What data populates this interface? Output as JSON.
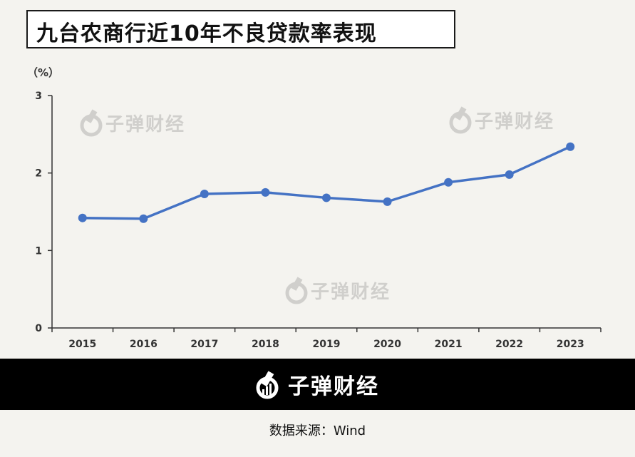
{
  "title": "九台农商行近10年不良贷款率表现",
  "unit_label": "（%）",
  "watermark_text": "子弹财经",
  "footer": {
    "brand": "子弹财经",
    "logo_icon": "bullet-logo-icon"
  },
  "source": "数据来源：Wind",
  "colors": {
    "line": "#4472c4",
    "background": "#f4f3ef",
    "footer_bg": "#000000",
    "axis": "#333333"
  },
  "chart_data": {
    "type": "line",
    "title": "九台农商行近10年不良贷款率表现",
    "xlabel": "",
    "ylabel": "（%）",
    "categories": [
      "2015",
      "2016",
      "2017",
      "2018",
      "2019",
      "2020",
      "2021",
      "2022",
      "2023"
    ],
    "series": [
      {
        "values": [
          1.42,
          1.41,
          1.73,
          1.75,
          1.68,
          1.63,
          1.88,
          1.98,
          2.34
        ]
      }
    ],
    "ylim": [
      0,
      3
    ],
    "yticks": [
      0,
      1,
      2,
      3
    ],
    "grid": false,
    "markers": true
  }
}
